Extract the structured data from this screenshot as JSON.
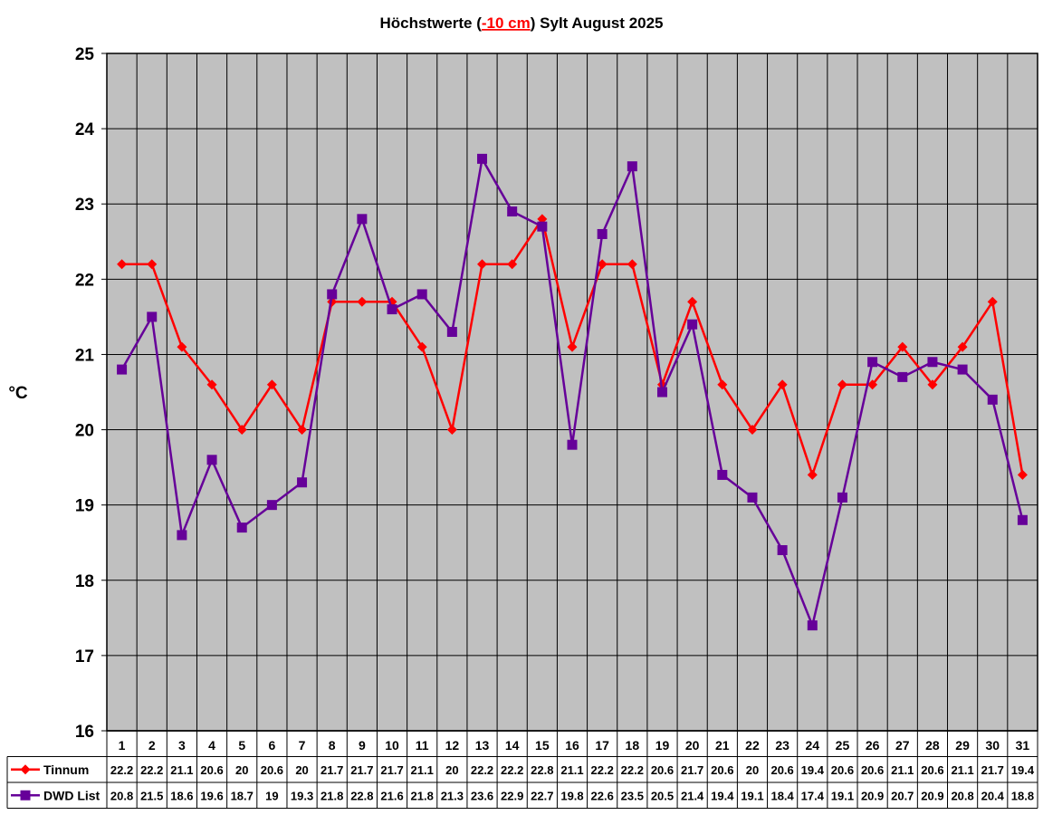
{
  "chart_data": {
    "type": "line",
    "title": {
      "prefix": "Höchstwerte (",
      "highlight": "-10 cm",
      "suffix": ") Sylt August 2025"
    },
    "ylabel": "°C",
    "xlabel": "",
    "ylim": [
      16,
      25
    ],
    "yticks": [
      "16",
      "17",
      "18",
      "19",
      "20",
      "21",
      "22",
      "23",
      "24",
      "25"
    ],
    "grid": true,
    "plot_background": "#c0c0c0",
    "legend": "data-table-left",
    "categories": [
      "1",
      "2",
      "3",
      "4",
      "5",
      "6",
      "7",
      "8",
      "9",
      "10",
      "11",
      "12",
      "13",
      "14",
      "15",
      "16",
      "17",
      "18",
      "19",
      "20",
      "21",
      "22",
      "23",
      "24",
      "25",
      "26",
      "27",
      "28",
      "29",
      "30",
      "31"
    ],
    "series": [
      {
        "name": "Tinnum",
        "color": "#ff0000",
        "marker": "diamond",
        "values": [
          22.2,
          22.2,
          21.1,
          20.6,
          20,
          20.6,
          20,
          21.7,
          21.7,
          21.7,
          21.1,
          20,
          22.2,
          22.2,
          22.8,
          21.1,
          22.2,
          22.2,
          20.6,
          21.7,
          20.6,
          20,
          20.6,
          19.4,
          20.6,
          20.6,
          21.1,
          20.6,
          21.1,
          21.7,
          19.4
        ],
        "labels": [
          "22.2",
          "22.2",
          "21.1",
          "20.6",
          "20",
          "20.6",
          "20",
          "21.7",
          "21.7",
          "21.7",
          "21.1",
          "20",
          "22.2",
          "22.2",
          "22.8",
          "21.1",
          "22.2",
          "22.2",
          "20.6",
          "21.7",
          "20.6",
          "20",
          "20.6",
          "19.4",
          "20.6",
          "20.6",
          "21.1",
          "20.6",
          "21.1",
          "21.7",
          "19.4"
        ]
      },
      {
        "name": "DWD List",
        "color": "#660099",
        "marker": "square",
        "values": [
          20.8,
          21.5,
          18.6,
          19.6,
          18.7,
          19,
          19.3,
          21.8,
          22.8,
          21.6,
          21.8,
          21.3,
          23.6,
          22.9,
          22.7,
          19.8,
          22.6,
          23.5,
          20.5,
          21.4,
          19.4,
          19.1,
          18.4,
          17.4,
          19.1,
          20.9,
          20.7,
          20.9,
          20.8,
          20.4,
          18.8
        ],
        "labels": [
          "20.8",
          "21.5",
          "18.6",
          "19.6",
          "18.7",
          "19",
          "19.3",
          "21.8",
          "22.8",
          "21.6",
          "21.8",
          "21.3",
          "23.6",
          "22.9",
          "22.7",
          "19.8",
          "22.6",
          "23.5",
          "20.5",
          "21.4",
          "19.4",
          "19.1",
          "18.4",
          "17.4",
          "19.1",
          "20.9",
          "20.7",
          "20.9",
          "20.8",
          "20.4",
          "18.8"
        ]
      }
    ]
  }
}
